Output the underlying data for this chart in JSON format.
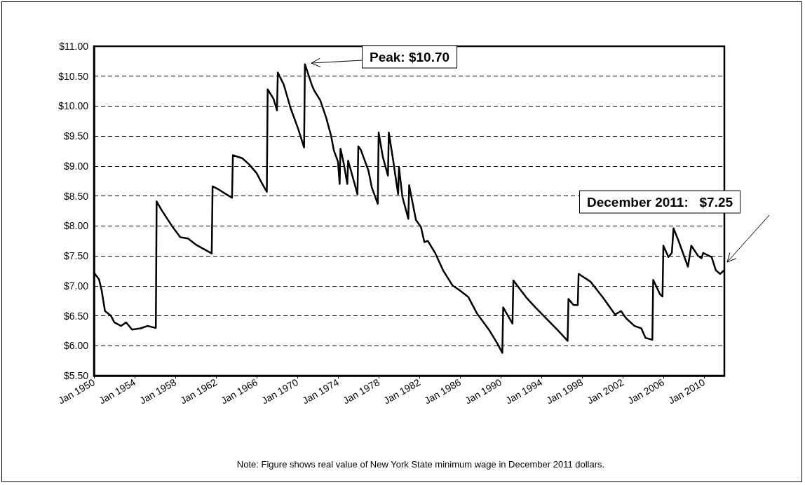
{
  "chart_data": {
    "type": "line",
    "x": [
      "1950-01",
      "1950-07",
      "1950-10",
      "1951-02",
      "1951-09",
      "1952-01",
      "1952-09",
      "1953-03",
      "1953-10",
      "1954-08",
      "1955-04",
      "1956-01",
      "1956-02",
      "1956-03",
      "1956-09",
      "1957-10",
      "1958-07",
      "1959-04",
      "1960-01",
      "1960-11",
      "1961-08",
      "1961-09",
      "1962-04",
      "1963-01",
      "1963-08",
      "1963-09",
      "1964-08",
      "1965-04",
      "1966-01",
      "1966-07",
      "1967-01",
      "1967-02",
      "1967-09",
      "1968-01",
      "1968-02",
      "1968-09",
      "1969-05",
      "1970-02",
      "1970-09",
      "1970-10",
      "1971-06",
      "1971-09",
      "1972-04",
      "1972-11",
      "1973-05",
      "1973-08",
      "1974-01",
      "1974-03",
      "1974-04",
      "1974-08",
      "1974-12",
      "1975-01",
      "1975-06",
      "1975-12",
      "1976-01",
      "1976-04",
      "1977-01",
      "1977-05",
      "1977-12",
      "1978-01",
      "1978-06",
      "1978-12",
      "1979-01",
      "1979-06",
      "1979-12",
      "1980-01",
      "1980-05",
      "1980-12",
      "1981-01",
      "1981-09",
      "1982-03",
      "1982-07",
      "1982-11",
      "1983-08",
      "1984-05",
      "1985-04",
      "1986-02",
      "1986-11",
      "1987-09",
      "1988-11",
      "1989-09",
      "1990-03",
      "1990-04",
      "1990-08",
      "1991-03",
      "1991-04",
      "1992-07",
      "1993-06",
      "1995-09",
      "1996-08",
      "1996-09",
      "1997-03",
      "1997-08",
      "1997-09",
      "1998-11",
      "2000-02",
      "2001-04",
      "2001-11",
      "2002-05",
      "2003-03",
      "2003-11",
      "2004-04",
      "2004-12",
      "2005-01",
      "2005-09",
      "2005-12",
      "2006-01",
      "2006-07",
      "2006-11",
      "2007-01",
      "2007-07",
      "2008-06",
      "2008-10",
      "2009-06",
      "2009-10",
      "2009-12",
      "2010-10",
      "2011-03",
      "2011-08",
      "2011-12"
    ],
    "values": [
      7.22,
      7.11,
      6.93,
      6.58,
      6.5,
      6.39,
      6.33,
      6.39,
      6.27,
      6.29,
      6.33,
      6.3,
      6.3,
      8.41,
      8.26,
      7.98,
      7.81,
      7.79,
      7.69,
      7.61,
      7.54,
      8.66,
      8.61,
      8.53,
      8.47,
      9.18,
      9.13,
      9.03,
      8.88,
      8.72,
      8.57,
      10.28,
      10.12,
      9.93,
      10.56,
      10.36,
      9.97,
      9.62,
      9.31,
      10.7,
      10.36,
      10.26,
      10.1,
      9.81,
      9.5,
      9.27,
      9.07,
      8.7,
      9.29,
      9.03,
      8.7,
      9.09,
      8.84,
      8.53,
      9.33,
      9.27,
      8.92,
      8.64,
      8.37,
      9.56,
      9.15,
      8.84,
      9.56,
      9.11,
      8.53,
      8.98,
      8.49,
      8.12,
      8.68,
      8.1,
      7.98,
      7.73,
      7.75,
      7.54,
      7.26,
      7.01,
      6.91,
      6.81,
      6.54,
      6.27,
      6.04,
      5.88,
      6.64,
      6.54,
      6.37,
      7.09,
      6.81,
      6.64,
      6.25,
      6.08,
      6.78,
      6.68,
      6.68,
      7.2,
      7.07,
      6.8,
      6.52,
      6.58,
      6.46,
      6.33,
      6.29,
      6.13,
      6.1,
      7.1,
      6.86,
      6.82,
      7.67,
      7.48,
      7.55,
      7.96,
      7.75,
      7.32,
      7.67,
      7.5,
      7.46,
      7.55,
      7.48,
      7.26,
      7.2,
      7.25
    ],
    "color": "#000000",
    "line_style": "solid",
    "marker": "none",
    "grid": "y",
    "xlim": [
      "1950-01",
      "2012-01"
    ],
    "xticks": [
      {
        "value": "1950-01",
        "label": "Jan 1950"
      },
      {
        "value": "1954-01",
        "label": "Jan 1954"
      },
      {
        "value": "1958-01",
        "label": "Jan 1958"
      },
      {
        "value": "1962-01",
        "label": "Jan 1962"
      },
      {
        "value": "1966-01",
        "label": "Jan 1966"
      },
      {
        "value": "1970-01",
        "label": "Jan 1970"
      },
      {
        "value": "1974-01",
        "label": "Jan 1974"
      },
      {
        "value": "1978-01",
        "label": "Jan 1978"
      },
      {
        "value": "1982-01",
        "label": "Jan 1982"
      },
      {
        "value": "1986-01",
        "label": "Jan 1986"
      },
      {
        "value": "1990-01",
        "label": "Jan 1990"
      },
      {
        "value": "1994-01",
        "label": "Jan 1994"
      },
      {
        "value": "1998-01",
        "label": "Jan 1998"
      },
      {
        "value": "2002-01",
        "label": "Jan 2002"
      },
      {
        "value": "2006-01",
        "label": "Jan 2006"
      },
      {
        "value": "2010-01",
        "label": "Jan 2010"
      }
    ],
    "ylim": [
      5.5,
      11
    ],
    "yticks": [
      {
        "value": 5.5,
        "label": "$5.50"
      },
      {
        "value": 6,
        "label": "$6.00"
      },
      {
        "value": 6.5,
        "label": "$6.50"
      },
      {
        "value": 7,
        "label": "$7.00"
      },
      {
        "value": 7.5,
        "label": "$7.50"
      },
      {
        "value": 8,
        "label": "$8.00"
      },
      {
        "value": 8.5,
        "label": "$8.50"
      },
      {
        "value": 9,
        "label": "$9.00"
      },
      {
        "value": 9.5,
        "label": "$9.50"
      },
      {
        "value": 10,
        "label": "$10.00"
      },
      {
        "value": 10.5,
        "label": "$10.50"
      },
      {
        "value": 11,
        "label": "$11.00"
      }
    ],
    "annotations": [
      "Peak: $10.70",
      "December 2011:   $7.25",
      "Note: Figure shows real value of New York State minimum wage in December 2011 dollars."
    ]
  }
}
